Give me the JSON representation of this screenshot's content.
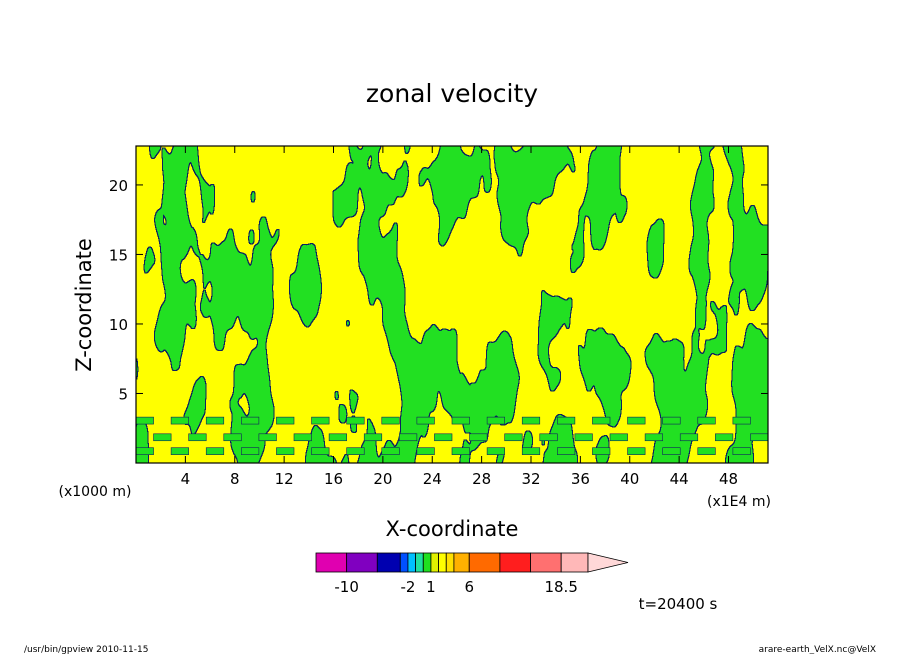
{
  "chart_data": {
    "type": "heatmap",
    "title": "zonal velocity",
    "xlabel": "X-coordinate",
    "ylabel": "Z-coordinate",
    "x_unit_left": "(x1000 m)",
    "x_unit_right": "(x1E4 m)",
    "x_ticks": [
      "4",
      "8",
      "12",
      "16",
      "20",
      "24",
      "28",
      "32",
      "36",
      "40",
      "44",
      "48"
    ],
    "y_ticks": [
      "5",
      "10",
      "15",
      "20"
    ],
    "xlim": [
      0,
      51.2
    ],
    "ylim": [
      0,
      22.8
    ],
    "time_label": "t=20400 s",
    "colorbar": {
      "labels": [
        "-10",
        "-2",
        "1",
        "6",
        "18.5"
      ],
      "label_positions": [
        -10,
        -2,
        1,
        6,
        18.5
      ],
      "bins": [
        {
          "from": -14,
          "to": -10,
          "color": "#e000b0"
        },
        {
          "from": -10,
          "to": -6,
          "color": "#8000c0"
        },
        {
          "from": -6,
          "to": -3,
          "color": "#0000b0"
        },
        {
          "from": -3,
          "to": -2,
          "color": "#0050ff"
        },
        {
          "from": -2,
          "to": -1,
          "color": "#00c0ff"
        },
        {
          "from": -1,
          "to": 0,
          "color": "#20e0a0"
        },
        {
          "from": 0,
          "to": 1,
          "color": "#20e020"
        },
        {
          "from": 1,
          "to": 2,
          "color": "#e0f000"
        },
        {
          "from": 2,
          "to": 3,
          "color": "#ffff00"
        },
        {
          "from": 3,
          "to": 4,
          "color": "#ffe000"
        },
        {
          "from": 4,
          "to": 6,
          "color": "#ffb000"
        },
        {
          "from": 6,
          "to": 10,
          "color": "#ff6a00"
        },
        {
          "from": 10,
          "to": 14,
          "color": "#ff1e1e"
        },
        {
          "from": 14,
          "to": 18.5,
          "color": "#ff7070"
        },
        {
          "from": 18.5,
          "to": 22,
          "color": "#ffb8b8"
        }
      ],
      "overflow_color": "#ffd8d8"
    },
    "field_colors": {
      "positive": "#ffff00",
      "near_zero": "#20e020"
    },
    "grid": false,
    "legend": "colorbar-bottom"
  },
  "footer": {
    "left": "/usr/bin/gpview  2010-11-15",
    "right": "arare-earth_VelX.nc@VelX"
  }
}
